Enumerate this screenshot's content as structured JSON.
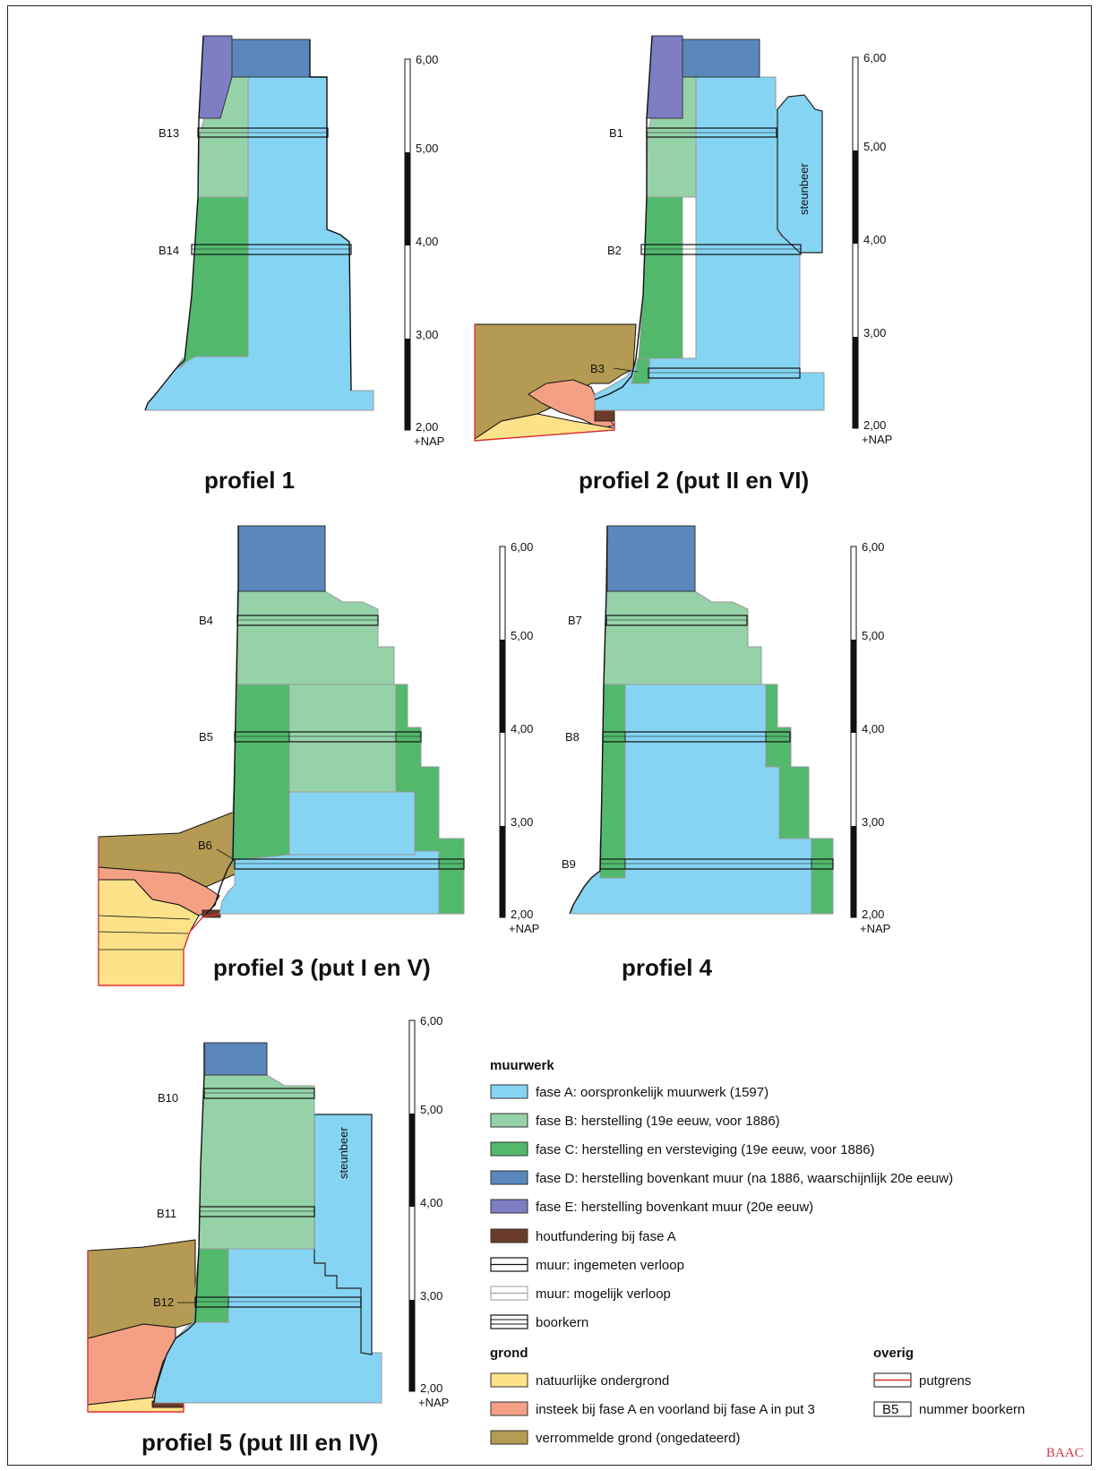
{
  "colors": {
    "fase_A": "#86d4f3",
    "fase_B": "#95d2a8",
    "fase_C": "#52b86c",
    "fase_D": "#5a88bd",
    "fase_E": "#7f7dc4",
    "hout": "#6a3b2a",
    "natuurlijk": "#fde28a",
    "insteek": "#f4a085",
    "verrommeld": "#b49a52",
    "putgrens": "#e03030",
    "credit": "#d23a4a"
  },
  "scale": {
    "ticks": [
      "6,00",
      "5,00",
      "4,00",
      "3,00",
      "2,00"
    ],
    "unit": "+NAP"
  },
  "profiles": [
    {
      "title": "profiel 1",
      "cores": [
        "B13",
        "B14"
      ]
    },
    {
      "title": "profiel 2 (put II en VI)",
      "cores": [
        "B1",
        "B2",
        "B3"
      ],
      "steunbeer": "steunbeer"
    },
    {
      "title": "profiel 3 (put I en V)",
      "cores": [
        "B4",
        "B5",
        "B6"
      ]
    },
    {
      "title": "profiel 4",
      "cores": [
        "B7",
        "B8",
        "B9"
      ]
    },
    {
      "title": "profiel 5 (put III en IV)",
      "cores": [
        "B10",
        "B11",
        "B12"
      ],
      "steunbeer": "steunbeer"
    }
  ],
  "legend": {
    "muurwerk_heading": "muurwerk",
    "muurwerk": [
      {
        "key": "fase_A",
        "label": "fase A: oorspronkelijk muurwerk (1597)"
      },
      {
        "key": "fase_B",
        "label": "fase B: herstelling (19e eeuw, voor 1886)"
      },
      {
        "key": "fase_C",
        "label": "fase C: herstelling en versteviging (19e eeuw, voor 1886)"
      },
      {
        "key": "fase_D",
        "label": "fase D: herstelling bovenkant muur (na 1886, waarschijnlijk 20e eeuw)"
      },
      {
        "key": "fase_E",
        "label": "fase E: herstelling bovenkant muur (20e eeuw)"
      },
      {
        "key": "hout",
        "label": "houtfundering bij fase A"
      },
      {
        "key": "ingemeten",
        "label": "muur: ingemeten verloop"
      },
      {
        "key": "mogelijk",
        "label": "muur: mogelijk verloop"
      },
      {
        "key": "boorkern",
        "label": "boorkern"
      }
    ],
    "grond_heading": "grond",
    "grond": [
      {
        "key": "natuurlijk",
        "label": "natuurlijke ondergrond"
      },
      {
        "key": "insteek",
        "label": "insteek bij fase A en voorland bij fase A in put 3"
      },
      {
        "key": "verrommeld",
        "label": "verrommelde grond (ongedateerd)"
      }
    ],
    "overig_heading": "overig",
    "overig": [
      {
        "key": "putgrens",
        "label": "putgrens"
      },
      {
        "key": "nummer",
        "label": "nummer boorkern",
        "badge": "B5"
      }
    ]
  },
  "credit": "BAAC"
}
